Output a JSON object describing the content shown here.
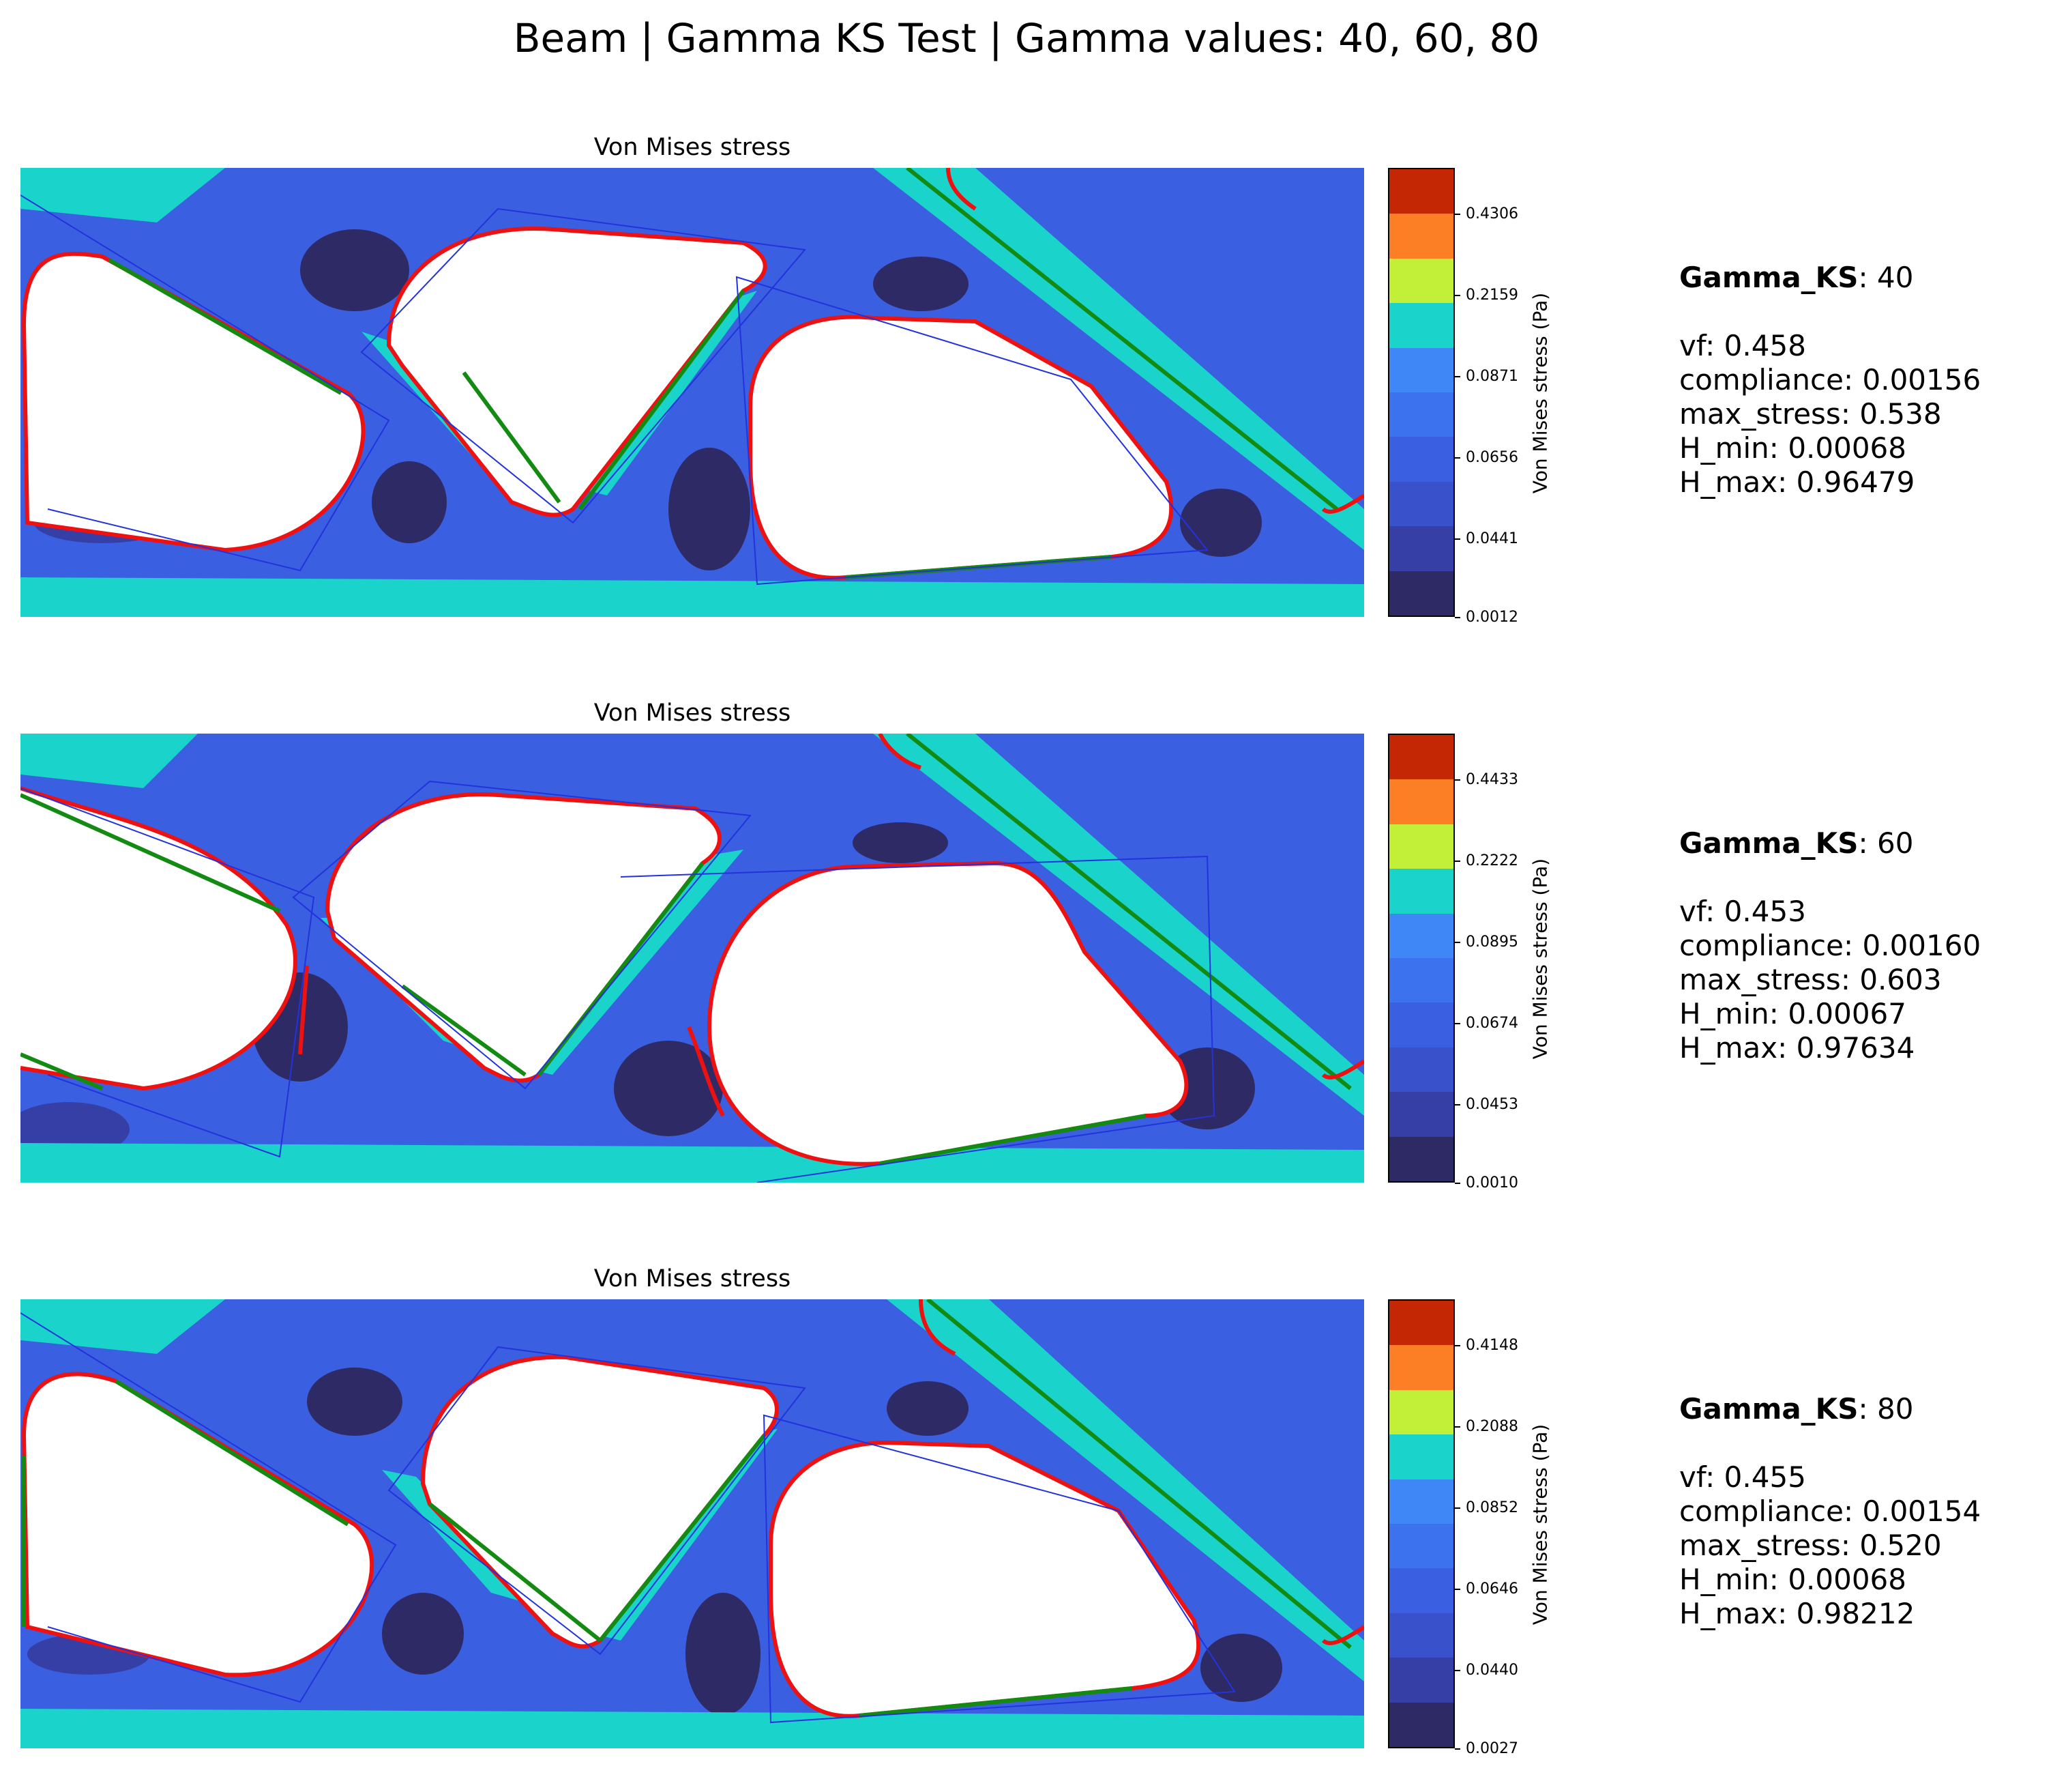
{
  "figure": {
    "title": "Beam | Gamma KS Test | Gamma values: 40, 60, 80"
  },
  "colors": {
    "red_curve": "#ee1111",
    "green_line": "#138a12",
    "blue_polygon": "#2233dd",
    "colormap_bands": [
      "#2e2a66",
      "#353fa6",
      "#3a51cc",
      "#3a5fe0",
      "#3d72ee",
      "#3f86f6",
      "#1ad3cb",
      "#c2ef38",
      "#fc7f26",
      "#c42703"
    ]
  },
  "chart_data": [
    {
      "type": "heatmap",
      "title": "Von Mises stress",
      "colorbar_label": "Von Mises stress (Pa)",
      "colorbar_ticks": [
        "0.4306",
        "0.2159",
        "0.0871",
        "0.0656",
        "0.0441",
        "0.0012"
      ],
      "gamma_label": "Gamma_KS",
      "gamma": "40",
      "metrics": [
        {
          "key": "vf",
          "value": "0.458"
        },
        {
          "key": "compliance",
          "value": "0.00156"
        },
        {
          "key": "max_stress",
          "value": "0.538"
        },
        {
          "key": "H_min",
          "value": "0.00068"
        },
        {
          "key": "H_max",
          "value": "0.96479"
        }
      ]
    },
    {
      "type": "heatmap",
      "title": "Von Mises stress",
      "colorbar_label": "Von Mises stress (Pa)",
      "colorbar_ticks": [
        "0.4433",
        "0.2222",
        "0.0895",
        "0.0674",
        "0.0453",
        "0.0010"
      ],
      "gamma_label": "Gamma_KS",
      "gamma": "60",
      "metrics": [
        {
          "key": "vf",
          "value": "0.453"
        },
        {
          "key": "compliance",
          "value": "0.00160"
        },
        {
          "key": "max_stress",
          "value": "0.603"
        },
        {
          "key": "H_min",
          "value": "0.00067"
        },
        {
          "key": "H_max",
          "value": "0.97634"
        }
      ]
    },
    {
      "type": "heatmap",
      "title": "Von Mises stress",
      "colorbar_label": "Von Mises stress (Pa)",
      "colorbar_ticks": [
        "0.4148",
        "0.2088",
        "0.0852",
        "0.0646",
        "0.0440",
        "0.0027"
      ],
      "gamma_label": "Gamma_KS",
      "gamma": "80",
      "metrics": [
        {
          "key": "vf",
          "value": "0.455"
        },
        {
          "key": "compliance",
          "value": "0.00154"
        },
        {
          "key": "max_stress",
          "value": "0.520"
        },
        {
          "key": "H_min",
          "value": "0.00068"
        },
        {
          "key": "H_max",
          "value": "0.98212"
        }
      ]
    }
  ]
}
